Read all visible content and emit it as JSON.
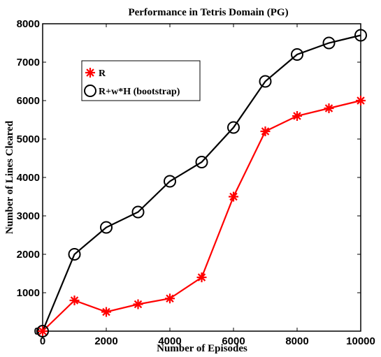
{
  "chart_data": {
    "type": "line",
    "title": "Performance in Tetris Domain (PG)",
    "xlabel": "Number of Episodes",
    "ylabel": "Number of Lines Cleared",
    "xlim": [
      0,
      10000
    ],
    "ylim": [
      0,
      8000
    ],
    "xticks": [
      0,
      2000,
      4000,
      6000,
      8000,
      10000
    ],
    "yticks": [
      0,
      1000,
      2000,
      3000,
      4000,
      5000,
      6000,
      7000,
      8000
    ],
    "grid": false,
    "legend_position": "upper-left",
    "x": [
      0,
      1000,
      2000,
      3000,
      4000,
      5000,
      6000,
      7000,
      8000,
      9000,
      10000
    ],
    "series": [
      {
        "name": "R",
        "color": "#ff0000",
        "marker": "asterisk",
        "values": [
          0,
          800,
          500,
          700,
          850,
          1400,
          3500,
          5200,
          5600,
          5800,
          6000
        ]
      },
      {
        "name": "R+w*H (bootstrap)",
        "color": "#000000",
        "marker": "circle",
        "values": [
          0,
          2000,
          2700,
          3100,
          3900,
          4400,
          5300,
          6500,
          7200,
          7500,
          7700
        ]
      }
    ]
  }
}
